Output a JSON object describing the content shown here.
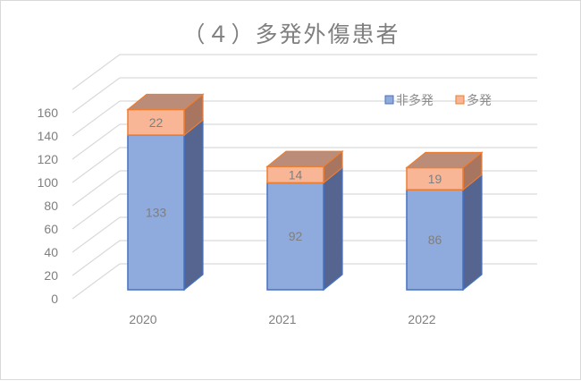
{
  "title": "（４）多発外傷患者",
  "chart_data": {
    "type": "bar",
    "subtype": "3d-stacked-column",
    "title": "（４）多発外傷患者",
    "categories": [
      "2020",
      "2021",
      "2022"
    ],
    "series": [
      {
        "name": "非多発",
        "values": [
          133,
          92,
          86
        ],
        "color": "#8faadc",
        "edge": "#4472c4",
        "side": "#56658f"
      },
      {
        "name": "多発",
        "values": [
          22,
          14,
          19
        ],
        "color": "#f8b697",
        "edge": "#ed7d31",
        "side": "#a87560"
      }
    ],
    "totals": [
      155,
      106,
      105
    ],
    "xlabel": "",
    "ylabel": "",
    "ylim": [
      0,
      160
    ],
    "yticks": [
      0,
      20,
      40,
      60,
      80,
      100,
      120,
      140,
      160
    ],
    "grid": true,
    "legend_position": "top-right"
  },
  "legend": {
    "items": [
      {
        "label": "非多発",
        "color": "#8faadc",
        "border": "#4472c4"
      },
      {
        "label": "多発",
        "color": "#f8b697",
        "border": "#ed7d31"
      }
    ]
  }
}
